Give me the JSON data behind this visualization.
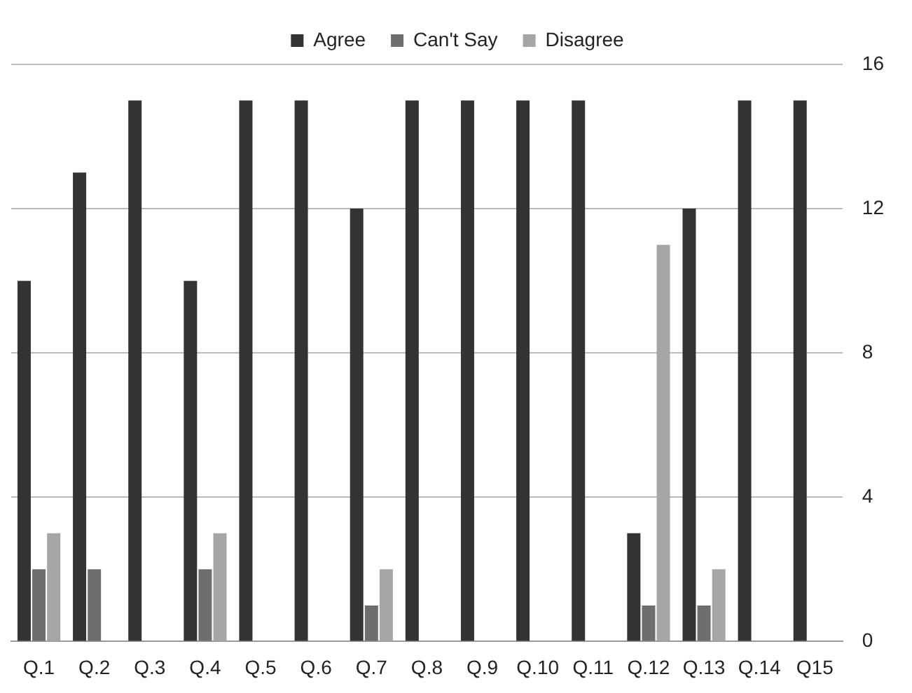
{
  "chart_data": {
    "type": "bar",
    "categories": [
      "Q.1",
      "Q.2",
      "Q.3",
      "Q.4",
      "Q.5",
      "Q.6",
      "Q.7",
      "Q.8",
      "Q.9",
      "Q.10",
      "Q.11",
      "Q.12",
      "Q.13",
      "Q.14",
      "Q15"
    ],
    "series": [
      {
        "name": "Agree",
        "color": "#333333",
        "values": [
          10,
          13,
          15,
          10,
          15,
          15,
          12,
          15,
          15,
          15,
          15,
          3,
          12,
          15,
          15
        ]
      },
      {
        "name": "Can't Say",
        "color": "#6e6e6e",
        "values": [
          2,
          2,
          0,
          2,
          0,
          0,
          1,
          0,
          0,
          0,
          0,
          1,
          1,
          0,
          0
        ]
      },
      {
        "name": "Disagree",
        "color": "#a6a6a6",
        "values": [
          3,
          0,
          0,
          3,
          0,
          0,
          2,
          0,
          0,
          0,
          0,
          11,
          2,
          0,
          0
        ]
      }
    ],
    "ylim": [
      0,
      16
    ],
    "yticks": [
      0,
      4,
      8,
      12,
      16
    ],
    "grid": "y",
    "legend": "top"
  }
}
